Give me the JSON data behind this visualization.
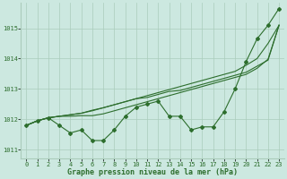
{
  "xlabel": "Graphe pression niveau de la mer (hPa)",
  "background_color": "#cce8e0",
  "grid_color": "#aaccbb",
  "line_color": "#2d6e2d",
  "xlim": [
    -0.5,
    23.5
  ],
  "ylim": [
    1010.7,
    1015.85
  ],
  "yticks": [
    1011,
    1012,
    1013,
    1014,
    1015
  ],
  "xticks": [
    0,
    1,
    2,
    3,
    4,
    5,
    6,
    7,
    8,
    9,
    10,
    11,
    12,
    13,
    14,
    15,
    16,
    17,
    18,
    19,
    20,
    21,
    22,
    23
  ],
  "series": [
    [
      1011.8,
      1011.95,
      1012.05,
      1011.8,
      1011.55,
      1011.65,
      1011.3,
      1011.3,
      1011.65,
      1012.1,
      1012.4,
      1012.5,
      1012.6,
      1012.1,
      1012.1,
      1011.65,
      1011.75,
      1011.75,
      1012.25,
      1013.0,
      1013.9,
      1014.65,
      1015.1,
      1015.65
    ],
    [
      1011.8,
      1011.95,
      1012.05,
      1012.1,
      1012.15,
      1012.2,
      1012.3,
      1012.38,
      1012.48,
      1012.58,
      1012.68,
      1012.72,
      1012.82,
      1012.92,
      1012.95,
      1013.05,
      1013.15,
      1013.25,
      1013.35,
      1013.45,
      1013.55,
      1013.75,
      1013.95,
      1015.1
    ],
    [
      1011.8,
      1011.95,
      1012.05,
      1012.1,
      1012.15,
      1012.2,
      1012.28,
      1012.38,
      1012.48,
      1012.58,
      1012.68,
      1012.78,
      1012.88,
      1012.98,
      1013.08,
      1013.18,
      1013.28,
      1013.38,
      1013.48,
      1013.58,
      1013.78,
      1014.0,
      1014.5,
      1015.1
    ],
    [
      1011.8,
      1011.95,
      1012.05,
      1012.1,
      1012.1,
      1012.12,
      1012.12,
      1012.18,
      1012.28,
      1012.38,
      1012.48,
      1012.58,
      1012.68,
      1012.78,
      1012.88,
      1012.98,
      1013.08,
      1013.18,
      1013.28,
      1013.38,
      1013.48,
      1013.68,
      1013.98,
      1015.1
    ]
  ]
}
